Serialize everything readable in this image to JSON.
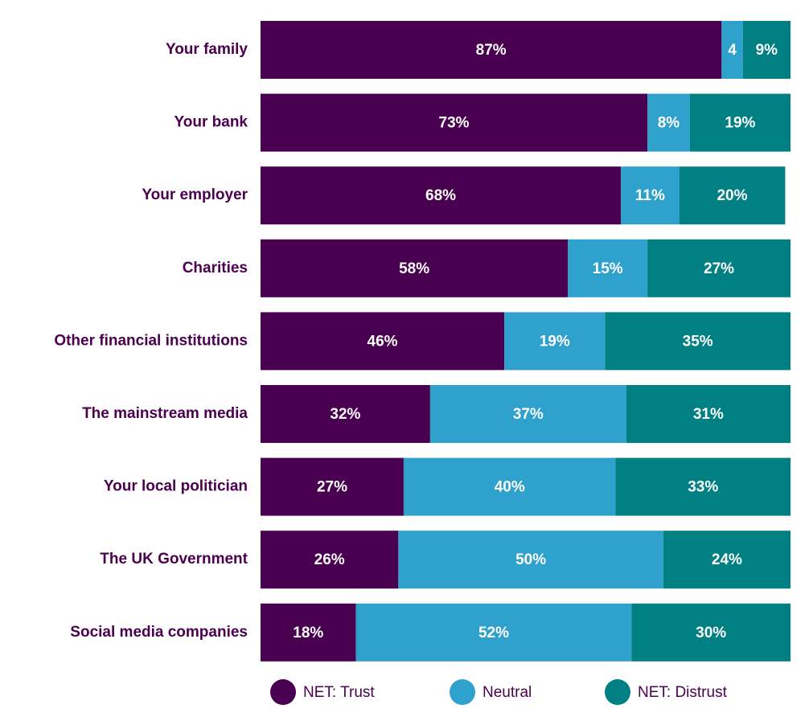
{
  "chart_data": {
    "type": "stacked-bar",
    "orientation": "horizontal",
    "categories": [
      "Your family",
      "Your bank",
      "Your employer",
      "Charities",
      "Other financial institutions",
      "The mainstream media",
      "Your local politician",
      "The UK Government",
      "Social media companies"
    ],
    "series": [
      {
        "name": "NET: Trust",
        "color": "#4a0050",
        "values": [
          87,
          73,
          68,
          58,
          46,
          32,
          27,
          26,
          18
        ],
        "value_labels": [
          "87%",
          "73%",
          "68%",
          "58%",
          "46%",
          "32%",
          "27%",
          "26%",
          "18%"
        ]
      },
      {
        "name": "Neutral",
        "color": "#2ea1cd",
        "values": [
          4,
          8,
          11,
          15,
          19,
          37,
          40,
          50,
          52
        ],
        "value_labels": [
          "4",
          "8%",
          "11%",
          "15%",
          "19%",
          "37%",
          "40%",
          "50%",
          "52%"
        ]
      },
      {
        "name": "NET: Distrust",
        "color": "#008083",
        "values": [
          9,
          19,
          20,
          27,
          35,
          31,
          33,
          24,
          30
        ],
        "value_labels": [
          "9%",
          "19%",
          "20%",
          "27%",
          "35%",
          "31%",
          "33%",
          "24%",
          "30%"
        ]
      }
    ],
    "xlim": [
      0,
      100
    ]
  }
}
